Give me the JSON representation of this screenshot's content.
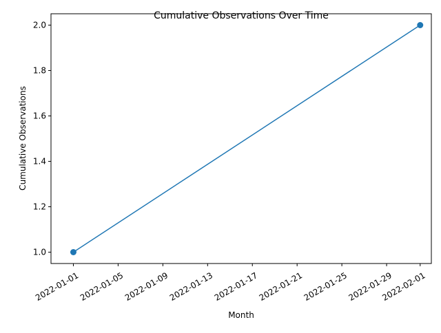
{
  "chart_data": {
    "type": "line",
    "title": "Cumulative Observations Over Time",
    "xlabel": "Month",
    "ylabel": "Cumulative Observations",
    "series": [
      {
        "color": "#1f77b4",
        "marker": "circle",
        "points": [
          {
            "x": "2022-01-01",
            "y": 1
          },
          {
            "x": "2022-02-01",
            "y": 2
          }
        ]
      }
    ],
    "x_ticks": [
      "2022-01-01",
      "2022-01-05",
      "2022-01-09",
      "2022-01-13",
      "2022-01-17",
      "2022-01-21",
      "2022-01-25",
      "2022-01-29",
      "2022-02-01"
    ],
    "y_ticks": [
      "1.0",
      "1.2",
      "1.4",
      "1.6",
      "1.8",
      "2.0"
    ],
    "xlim": [
      "2021-12-30",
      "2022-02-02"
    ],
    "ylim": [
      0.95,
      2.05
    ],
    "grid": false,
    "legend": "none"
  }
}
